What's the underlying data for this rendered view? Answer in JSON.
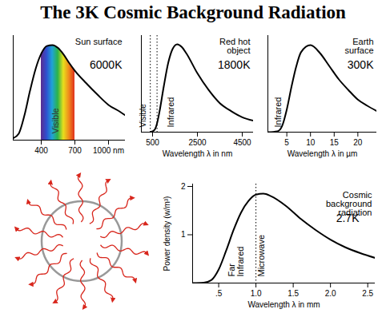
{
  "title": "The 3K Cosmic Background Radiation",
  "chart_data": [
    {
      "type": "line",
      "title": "Sun surface",
      "subtitle": "6000K",
      "color": "#000000",
      "x": [
        150,
        200,
        250,
        300,
        350,
        400,
        450,
        500,
        550,
        600,
        650,
        700,
        800,
        900,
        1000,
        1100,
        1150
      ],
      "values": [
        0.02,
        0.07,
        0.26,
        0.52,
        0.75,
        0.91,
        0.99,
        1.0,
        0.97,
        0.9,
        0.81,
        0.73,
        0.6,
        0.48,
        0.37,
        0.3,
        0.26
      ],
      "xlim": [
        150,
        1150
      ],
      "ylim": [
        0,
        1.1
      ],
      "xticks": [
        400,
        700,
        {
          "value": 1000,
          "label": "1000 nm"
        }
      ],
      "tick_labels": "x",
      "band": {
        "x": [
          400,
          700
        ],
        "label": "Visible",
        "colors": [
          "#5b2c8f",
          "#2f4fd0",
          "#1fa3d8",
          "#2bb34a",
          "#e8e01c",
          "#f08a1c",
          "#e0301e"
        ]
      }
    },
    {
      "type": "line",
      "title": "Red hot object",
      "subtitle": "1800K",
      "color": "#000000",
      "x_label": "Wavelength λ in nm",
      "x": [
        400,
        500,
        600,
        700,
        800,
        1000,
        1200,
        1400,
        1600,
        1800,
        2000,
        2500,
        3000,
        3500,
        4000,
        4500,
        5000
      ],
      "values": [
        0,
        0.01,
        0.03,
        0.1,
        0.22,
        0.52,
        0.79,
        0.95,
        1.0,
        0.97,
        0.9,
        0.67,
        0.48,
        0.33,
        0.24,
        0.17,
        0.13
      ],
      "xlim": [
        0,
        5000
      ],
      "ylim": [
        0,
        1.1
      ],
      "xticks": [
        500,
        2500,
        4500
      ],
      "tick_labels": "x",
      "band": {
        "x": [
          400,
          700
        ],
        "label": "Visible",
        "line_style": "dotted"
      },
      "region_label": "Infrared"
    },
    {
      "type": "line",
      "title": "Earth surface",
      "subtitle": "300K",
      "color": "#000000",
      "x_label": "Wavelength λ in µm",
      "x": [
        1,
        3,
        4,
        5,
        6,
        7,
        8,
        10,
        12,
        14,
        16,
        18,
        20,
        22,
        24
      ],
      "values": [
        0,
        0.01,
        0.07,
        0.26,
        0.52,
        0.75,
        0.91,
        0.99,
        0.9,
        0.75,
        0.6,
        0.48,
        0.37,
        0.3,
        0.24
      ],
      "xlim": [
        1,
        24
      ],
      "ylim": [
        0,
        1.1
      ],
      "xticks": [
        5,
        10,
        15,
        20
      ],
      "tick_labels": "x",
      "region_label": "Infrared"
    },
    {
      "type": "line",
      "title": "Cosmic background radiation",
      "subtitle": "2.7K",
      "color": "#000000",
      "x_label": "Wavelength λ in mm",
      "y_label": "Power density (w/m³)",
      "x": [
        0.15,
        0.3,
        0.4,
        0.5,
        0.6,
        0.7,
        0.8,
        0.9,
        1.0,
        1.1,
        1.2,
        1.4,
        1.6,
        1.8,
        2.0,
        2.2,
        2.4,
        2.6
      ],
      "values": [
        0,
        0.01,
        0.06,
        0.28,
        0.67,
        1.1,
        1.46,
        1.7,
        1.83,
        1.85,
        1.8,
        1.6,
        1.33,
        1.1,
        0.9,
        0.74,
        0.62,
        0.52
      ],
      "xlim": [
        0.15,
        2.6
      ],
      "ylim": [
        0,
        2.05
      ],
      "xticks": [
        {
          "value": 0.5,
          "label": ".5"
        },
        {
          "value": 1,
          "label": "1.0"
        },
        1.5,
        {
          "value": 2,
          "label": "2.0"
        },
        2.5
      ],
      "yticks": [
        1,
        2
      ],
      "divider": {
        "x": 1.0,
        "line_style": "dotted",
        "labels": [
          "Far Infrared",
          "Microwave"
        ]
      }
    }
  ]
}
